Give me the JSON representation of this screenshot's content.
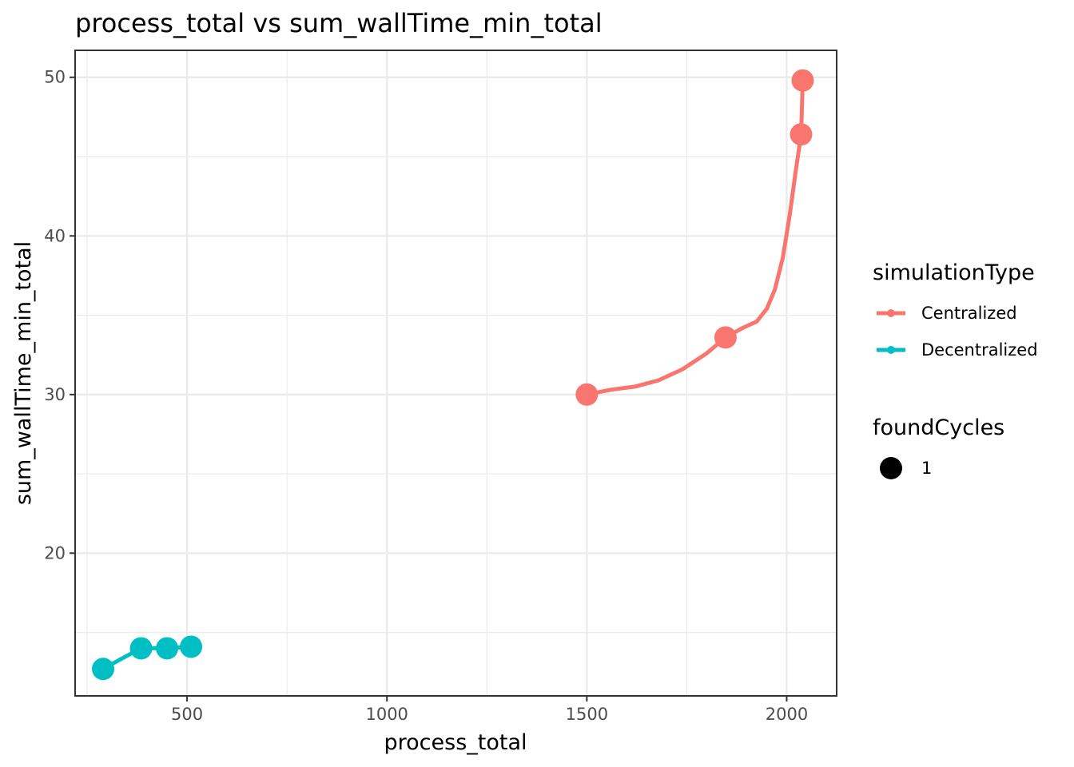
{
  "chart_data": {
    "type": "line",
    "title": "process_total  vs  sum_wallTime_min_total",
    "xlabel": "process_total",
    "ylabel": "sum_wallTime_min_total",
    "xlim": [
      220,
      2125
    ],
    "ylim": [
      11,
      51.7
    ],
    "x_ticks": [
      500,
      1000,
      1500,
      2000
    ],
    "x_tick_labels": [
      "500",
      "1000",
      "1500",
      "2000"
    ],
    "x_minor_ticks": [
      250,
      750,
      1250,
      1750
    ],
    "y_ticks": [
      20,
      30,
      40,
      50
    ],
    "y_tick_labels": [
      "20",
      "30",
      "40",
      "50"
    ],
    "y_minor_ticks": [
      15,
      25,
      35,
      45
    ],
    "grid": true,
    "legend_position": "right",
    "series": [
      {
        "name": "Centralized",
        "color": "#F8766D",
        "points": [
          {
            "x": 1500,
            "y": 30.0
          },
          {
            "x": 1847,
            "y": 33.6
          },
          {
            "x": 2036,
            "y": 46.4
          },
          {
            "x": 2040,
            "y": 49.8
          }
        ],
        "curve": [
          {
            "x": 1500,
            "y": 30.0
          },
          {
            "x": 1560,
            "y": 30.3
          },
          {
            "x": 1620,
            "y": 30.5
          },
          {
            "x": 1680,
            "y": 30.9
          },
          {
            "x": 1740,
            "y": 31.6
          },
          {
            "x": 1800,
            "y": 32.6
          },
          {
            "x": 1847,
            "y": 33.6
          },
          {
            "x": 1890,
            "y": 34.2
          },
          {
            "x": 1925,
            "y": 34.6
          },
          {
            "x": 1950,
            "y": 35.4
          },
          {
            "x": 1970,
            "y": 36.6
          },
          {
            "x": 1990,
            "y": 38.6
          },
          {
            "x": 2008,
            "y": 41.4
          },
          {
            "x": 2022,
            "y": 44.0
          },
          {
            "x": 2036,
            "y": 46.4
          },
          {
            "x": 2038,
            "y": 48.0
          },
          {
            "x": 2040,
            "y": 49.8
          }
        ]
      },
      {
        "name": "Decentralized",
        "color": "#00BFC4",
        "points": [
          {
            "x": 290,
            "y": 12.7
          },
          {
            "x": 385,
            "y": 14.0
          },
          {
            "x": 450,
            "y": 14.0
          },
          {
            "x": 510,
            "y": 14.1
          }
        ],
        "curve": [
          {
            "x": 290,
            "y": 12.7
          },
          {
            "x": 340,
            "y": 13.4
          },
          {
            "x": 385,
            "y": 14.0
          },
          {
            "x": 450,
            "y": 14.0
          },
          {
            "x": 510,
            "y": 14.1
          }
        ]
      }
    ],
    "legend": {
      "color_title": "simulationType",
      "color_entries": [
        "Centralized",
        "Decentralized"
      ],
      "size_title": "foundCycles",
      "size_entries": [
        "1"
      ]
    }
  }
}
